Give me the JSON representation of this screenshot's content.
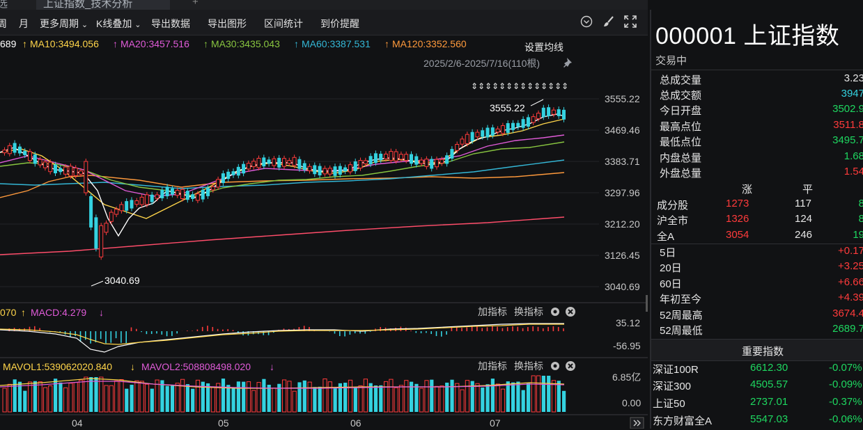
{
  "tabs": [
    {
      "label": "选"
    },
    {
      "label": "上证指数_技术分析"
    }
  ],
  "tab_add": "+",
  "toolbar": {
    "items": [
      "周",
      "月",
      "更多周期",
      "K线叠加",
      "导出数据",
      "导出图形",
      "区间统计",
      "到价提醒"
    ],
    "icons": [
      "collapse-icon",
      "brush-icon",
      "fullscreen-icon"
    ]
  },
  "ma_bar": {
    "ma5": "689",
    "ma10": "MA10:3494.056",
    "ma20": "MA20:3457.516",
    "ma30": "MA30:3435.043",
    "ma60": "MA60:3387.531",
    "ma120": "MA120:3352.560",
    "setting": "设置均线",
    "arrow": "↑",
    "dropdown": "⌄"
  },
  "range_label": "2025/2/6-2025/7/16(110根)",
  "colors": {
    "up": "#ff3b3b",
    "down": "#34d2e0",
    "ma5": "#ffffff",
    "ma10": "#ffd54a",
    "ma20": "#e05bd8",
    "ma30": "#88c540",
    "ma60": "#34b7d6",
    "ma120": "#ff9a3c",
    "ma250": "#ff4d6a"
  },
  "main_chart": {
    "y_ticks": [
      "3555.22",
      "3469.46",
      "3383.71",
      "3297.96",
      "3212.20",
      "3126.45",
      "3040.69"
    ],
    "high_annotation": "3555.22",
    "low_annotation": "3040.69",
    "signal_arrows": 14
  },
  "macd_panel": {
    "label_prefix": "070",
    "label": "MACD:4.279",
    "add_indicator": "加指标",
    "switch_indicator": "换指标",
    "y_ticks": [
      "35.12",
      "-56.95"
    ]
  },
  "vol_panel": {
    "mavol1": "MAVOL1:539062020.840",
    "mavol2": "MAVOL2:508808498.020",
    "add_indicator": "加指标",
    "switch_indicator": "换指标",
    "y_ticks": [
      "6.85亿",
      "0.00"
    ]
  },
  "x_axis": [
    "04",
    "05",
    "06",
    "07"
  ],
  "quote": {
    "title": "000001 上证指数",
    "status": "交易中",
    "rows": [
      {
        "label": "总成交量",
        "value": "3.23",
        "color": "white"
      },
      {
        "label": "总成交额",
        "value": "3947",
        "color": "cyan"
      },
      {
        "label": "今日开盘",
        "value": "3502.9",
        "color": "green"
      },
      {
        "label": "最高点位",
        "value": "3511.8",
        "color": "red"
      },
      {
        "label": "最低点位",
        "value": "3495.7",
        "color": "green"
      },
      {
        "label": "内盘总量",
        "value": "1.68",
        "color": "green"
      },
      {
        "label": "外盘总量",
        "value": "1.54",
        "color": "red"
      }
    ],
    "breadth_header": {
      "up": "涨",
      "flat": "平"
    },
    "breadth": [
      {
        "label": "成分股",
        "up": "1273",
        "flat": "117",
        "down": "8"
      },
      {
        "label": "沪全市",
        "up": "1326",
        "flat": "124",
        "down": "8"
      },
      {
        "label": "全A",
        "up": "3054",
        "flat": "246",
        "down": "19"
      }
    ],
    "periods": [
      {
        "label": "5日",
        "value": "+0.17",
        "color": "red"
      },
      {
        "label": "20日",
        "value": "+3.25",
        "color": "red"
      },
      {
        "label": "60日",
        "value": "+6.66",
        "color": "red"
      },
      {
        "label": "年初至今",
        "value": "+4.39",
        "color": "red"
      },
      {
        "label": "52周最高",
        "value": "3674.4",
        "color": "red"
      },
      {
        "label": "52周最低",
        "value": "2689.7",
        "color": "green"
      }
    ],
    "indices_header": "重要指数",
    "indices": [
      {
        "name": "深证100R",
        "price": "6612.30",
        "change": "-0.07%"
      },
      {
        "name": "深证300",
        "price": "4505.57",
        "change": "-0.09%"
      },
      {
        "name": "上证50",
        "price": "2737.01",
        "change": "-0.37%"
      },
      {
        "name": "东方财富全A",
        "price": "5547.03",
        "change": "-0.06%"
      }
    ]
  }
}
